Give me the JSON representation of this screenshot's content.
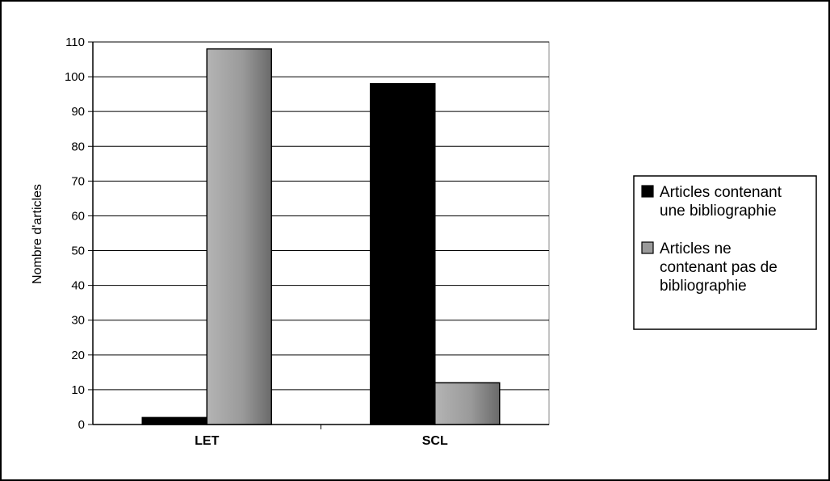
{
  "chart_data": {
    "type": "bar",
    "title": "",
    "xlabel": "",
    "ylabel": "Nombre d'articles",
    "ylim": [
      0,
      110
    ],
    "yticks": [
      0,
      10,
      20,
      30,
      40,
      50,
      60,
      70,
      80,
      90,
      100,
      110
    ],
    "grid": true,
    "legend_position": "right",
    "categories": [
      "LET",
      "SCL"
    ],
    "series": [
      {
        "name": "Articles contenant une bibliographie",
        "legend_lines": [
          "Articles contenant",
          "une bibliographie"
        ],
        "values": [
          2,
          98
        ],
        "color": "#000000"
      },
      {
        "name": "Articles ne contenant pas de bibliographie",
        "legend_lines": [
          "Articles ne",
          "contenant pas de",
          "bibliographie"
        ],
        "values": [
          108,
          12
        ],
        "color": "#9a9a9a"
      }
    ]
  }
}
